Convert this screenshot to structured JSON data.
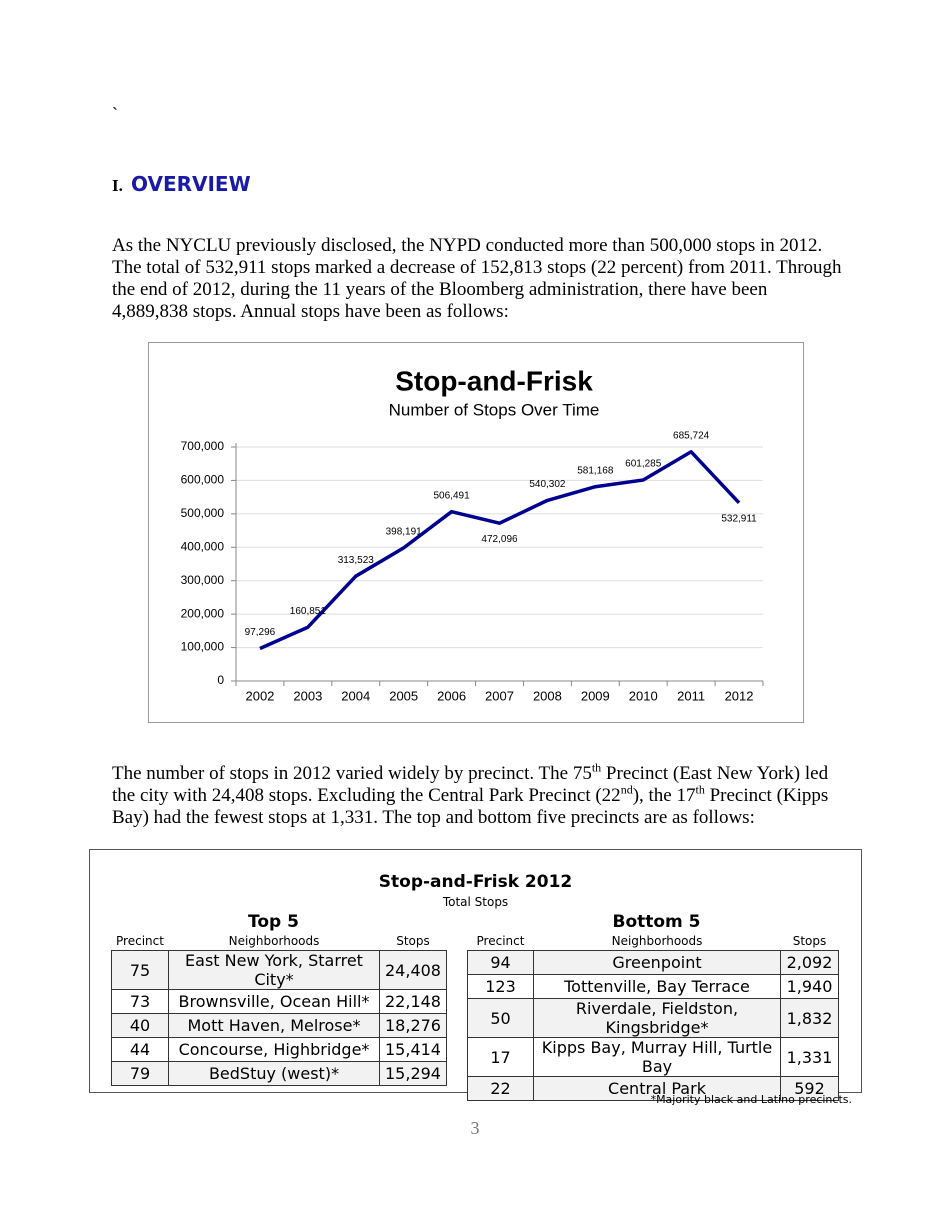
{
  "stray_mark": "`",
  "section": {
    "number": "I.",
    "title": "OVERVIEW"
  },
  "paragraph_1": "As the NYCLU previously disclosed, the NYPD conducted more than 500,000 stops in 2012. The total of 532,911 stops marked a decrease of 152,813 stops (22 percent) from 2011. Through the end of 2012, during the 11 years of the Bloomberg administration, there have been 4,889,838 stops. Annual stops have been as follows:",
  "chart_data": {
    "type": "line",
    "title": "Stop-and-Frisk",
    "subtitle": "Number of Stops Over Time",
    "categories": [
      "2002",
      "2003",
      "2004",
      "2005",
      "2006",
      "2007",
      "2008",
      "2009",
      "2010",
      "2011",
      "2012"
    ],
    "values": [
      97296,
      160851,
      313523,
      398191,
      506491,
      472096,
      540302,
      581168,
      601285,
      685724,
      532911
    ],
    "value_labels": [
      "97,296",
      "160,851",
      "313,523",
      "398,191",
      "506,491",
      "472,096",
      "540,302",
      "581,168",
      "601,285",
      "685,724",
      "532,911"
    ],
    "color": "#000090",
    "ylim": [
      0,
      700000
    ],
    "yticks": [
      0,
      {
        "value": 100000,
        "label": "100,000"
      },
      {
        "value": 200000,
        "label": "200,000"
      },
      {
        "value": 300000,
        "label": "300,000"
      },
      {
        "value": 400000,
        "label": "400,000"
      },
      {
        "value": 500000,
        "label": "500,000"
      },
      {
        "value": 600000,
        "label": "600,000"
      },
      {
        "value": 700000,
        "label": "700,000"
      }
    ],
    "grid": true
  },
  "paragraph_2": [
    {
      "text": "The number of stops in 2012 varied widely by precinct. The 75"
    },
    {
      "sup": "th"
    },
    {
      "text": " Precinct (East New York) led the city with 24,408 stops. Excluding the Central Park Precinct (22"
    },
    {
      "sup": "nd"
    },
    {
      "text": "), the 17"
    },
    {
      "sup": "th"
    },
    {
      "text": " Precinct (Kipps Bay) had the fewest stops at 1,331. The top and bottom five precincts are as follows:"
    }
  ],
  "table": {
    "title": "Stop-and-Frisk 2012",
    "subtitle": "Total Stops",
    "groups": [
      {
        "title": "Top 5",
        "headers": [
          "Precinct",
          "Neighborhoods",
          "Stops"
        ],
        "rows": [
          [
            "75",
            "East New York, Starret City*",
            "24,408"
          ],
          [
            "73",
            "Brownsville, Ocean Hill*",
            "22,148"
          ],
          [
            "40",
            "Mott Haven, Melrose*",
            "18,276"
          ],
          [
            "44",
            "Concourse, Highbridge*",
            "15,414"
          ],
          [
            "79",
            "BedStuy (west)*",
            "15,294"
          ]
        ]
      },
      {
        "title": "Bottom 5",
        "headers": [
          "Precinct",
          "Neighborhoods",
          "Stops"
        ],
        "rows": [
          [
            "94",
            "Greenpoint",
            "2,092"
          ],
          [
            "123",
            "Tottenville, Bay Terrace",
            "1,940"
          ],
          [
            "50",
            "Riverdale, Fieldston, Kingsbridge*",
            "1,832"
          ],
          [
            "17",
            "Kipps Bay, Murray Hill, Turtle Bay",
            "1,331"
          ],
          [
            "22",
            "Central Park",
            "592"
          ]
        ]
      }
    ],
    "footnote": "*Majority black and Latino precincts."
  },
  "page_number": "3"
}
